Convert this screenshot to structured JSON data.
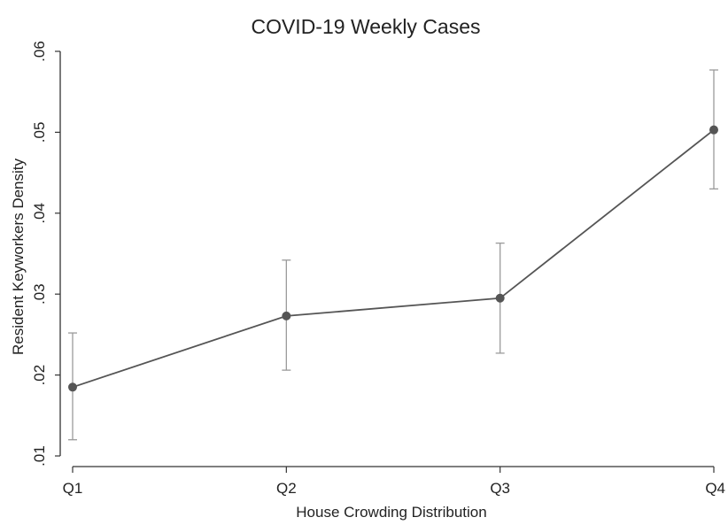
{
  "chart_data": {
    "type": "line",
    "title": "COVID-19 Weekly Cases",
    "xlabel": "House Crowding Distribution",
    "ylabel": "Resident Keyworkers Density",
    "categories": [
      "Q1",
      "Q2",
      "Q3",
      "Q4"
    ],
    "ylim": [
      0.01,
      0.06
    ],
    "yticks": [
      0.01,
      0.02,
      0.03,
      0.04,
      0.05,
      0.06
    ],
    "ytick_labels": [
      ".01",
      ".02",
      ".03",
      ".04",
      ".05",
      ".06"
    ],
    "grid": false,
    "series": [
      {
        "values": [
          0.0185,
          0.0273,
          0.0295,
          0.0503
        ],
        "ci_lower": [
          0.012,
          0.0206,
          0.0227,
          0.043
        ],
        "ci_upper": [
          0.0252,
          0.0342,
          0.0363,
          0.0577
        ]
      }
    ],
    "colors": {
      "line": "#555555",
      "marker": "#555555",
      "errorbar": "#9a9a9a",
      "axis": "#333333"
    }
  }
}
